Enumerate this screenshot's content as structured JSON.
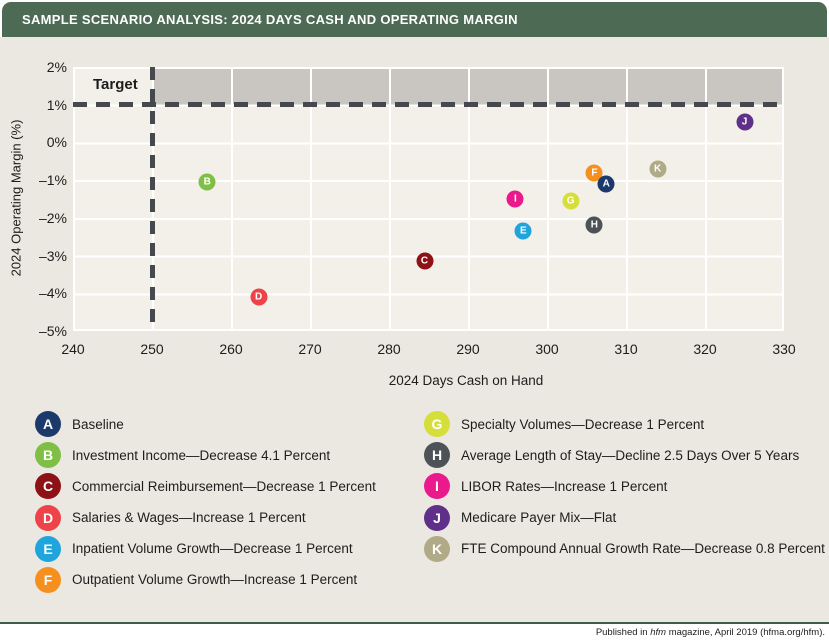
{
  "header": {
    "title": "SAMPLE SCENARIO ANALYSIS: 2024 DAYS CASH AND OPERATING MARGIN"
  },
  "chart_data": {
    "type": "scatter",
    "title": "SAMPLE SCENARIO ANALYSIS: 2024 DAYS CASH AND OPERATING MARGIN",
    "xlabel": "2024 Days Cash on Hand",
    "ylabel": "2024 Operating Margin (%)",
    "xlim": [
      240,
      330
    ],
    "ylim": [
      -5,
      2
    ],
    "x_ticks": [
      "240",
      "250",
      "260",
      "270",
      "280",
      "290",
      "300",
      "310",
      "320",
      "330"
    ],
    "y_ticks": [
      2,
      1,
      0,
      -1,
      -2,
      -3,
      -4,
      -5
    ],
    "y_tick_labels": [
      "2%",
      "1%",
      "0%",
      "–1%",
      "–2%",
      "–3%",
      "–4%",
      "–5%"
    ],
    "grid": true,
    "legend_position": "bottom",
    "target_region": {
      "label": "Target",
      "x_min": 250,
      "x_max": 330,
      "y_min": 1,
      "y_max": 2,
      "band_color": "#c9c6c2",
      "boundary_style": "dashed",
      "dash_color": "#45494e"
    },
    "points": [
      {
        "letter": "A",
        "name": "Baseline",
        "x": 307.5,
        "y": -1.1,
        "color": "#1b3a6b"
      },
      {
        "letter": "B",
        "name": "Investment Income—Decrease 4.1 Percent",
        "x": 257,
        "y": -1.05,
        "color": "#7fbf45"
      },
      {
        "letter": "C",
        "name": "Commercial Reimbursement—Decrease 1 Percent",
        "x": 284.5,
        "y": -3.15,
        "color": "#8d1216"
      },
      {
        "letter": "D",
        "name": "Salaries & Wages—Increase 1 Percent",
        "x": 263.5,
        "y": -4.1,
        "color": "#ee4449"
      },
      {
        "letter": "E",
        "name": "Inpatient Volume Growth—Decrease 1 Percent",
        "x": 297,
        "y": -2.35,
        "color": "#1fa5dc"
      },
      {
        "letter": "F",
        "name": "Outpatient Volume Growth—Increase 1 Percent",
        "x": 306,
        "y": -0.8,
        "color": "#f5901f"
      },
      {
        "letter": "G",
        "name": "Specialty Volumes—Decrease 1 Percent",
        "x": 303,
        "y": -1.55,
        "color": "#d6de3a"
      },
      {
        "letter": "H",
        "name": "Average Length of Stay—Decline 2.5 Days Over 5 Years",
        "x": 306,
        "y": -2.2,
        "color": "#4d5257"
      },
      {
        "letter": "I",
        "name": "LIBOR Rates—Increase 1 Percent",
        "x": 296,
        "y": -1.5,
        "color": "#ea1a8c"
      },
      {
        "letter": "J",
        "name": "Medicare Payer Mix—Flat",
        "x": 325,
        "y": 0.55,
        "color": "#5f3089"
      },
      {
        "letter": "K",
        "name": "FTE Compound Annual Growth Rate—Decrease 0.8 Percent",
        "x": 314,
        "y": -0.7,
        "color": "#b1aa86"
      }
    ]
  },
  "legend": {
    "columns": [
      [
        "A",
        "B",
        "C",
        "D",
        "E",
        "F"
      ],
      [
        "G",
        "H",
        "I",
        "J",
        "K"
      ]
    ]
  },
  "footer": {
    "prefix": "Published in ",
    "italic": "hfm",
    "suffix": " magazine, April 2019 (hfma.org/hfm)."
  }
}
